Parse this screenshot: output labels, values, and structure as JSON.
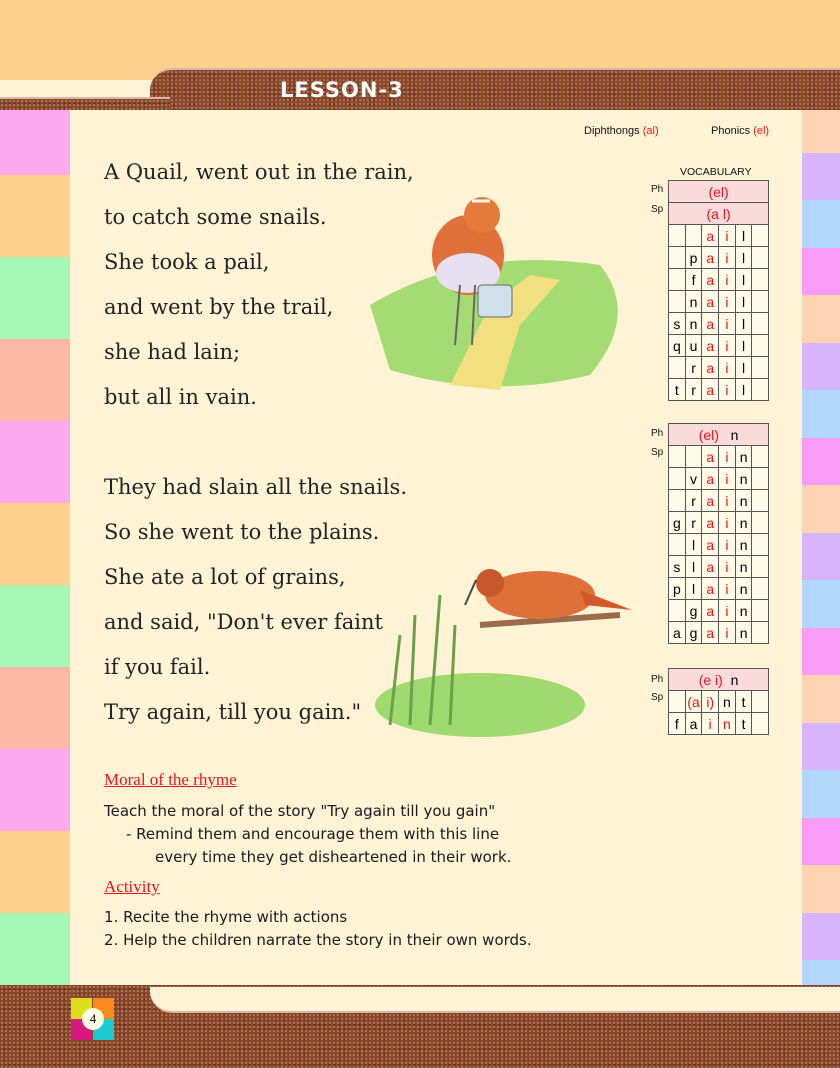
{
  "header": {
    "lesson": "LESSON-3"
  },
  "top_labels": {
    "diphthongs": "Diphthongs",
    "diphthongs_sound": "(al)",
    "phonics": "Phonics",
    "phonics_sound": "(el)"
  },
  "poem": {
    "stanza1": [
      "A Quail, went out in the rain,",
      "to catch some snails.",
      "She took a pail,",
      "and went by the trail,",
      "she had lain;",
      "but all in vain."
    ],
    "stanza2": [
      "They had slain all the snails.",
      "So she went to the plains.",
      "She ate a lot of grains,",
      "and said, \"Don't ever faint",
      "if you fail.",
      "Try again, till you gain.\""
    ]
  },
  "vocabulary": {
    "title": "VOCABULARY",
    "ph_label": "Ph",
    "sp_label": "Sp",
    "table1": {
      "ph": "(el)",
      "sp": "(a  l)",
      "words": [
        [
          "",
          "",
          "a",
          "i",
          "l",
          ""
        ],
        [
          "",
          "p",
          "a",
          "i",
          "l",
          ""
        ],
        [
          "",
          "f",
          "a",
          "i",
          "l",
          ""
        ],
        [
          "",
          "n",
          "a",
          "i",
          "l",
          ""
        ],
        [
          "s",
          "n",
          "a",
          "i",
          "l",
          ""
        ],
        [
          "q",
          "u",
          "a",
          "i",
          "l",
          ""
        ],
        [
          "",
          "r",
          "a",
          "i",
          "l",
          ""
        ],
        [
          "t",
          "r",
          "a",
          "i",
          "l",
          ""
        ]
      ]
    },
    "table2": {
      "ph": "(el)",
      "ph_end": "n",
      "words": [
        [
          "",
          "",
          "a",
          "i",
          "n",
          ""
        ],
        [
          "",
          "v",
          "a",
          "i",
          "n",
          ""
        ],
        [
          "",
          "r",
          "a",
          "i",
          "n",
          ""
        ],
        [
          "g",
          "r",
          "a",
          "i",
          "n",
          ""
        ],
        [
          "",
          "l",
          "a",
          "i",
          "n",
          ""
        ],
        [
          "s",
          "l",
          "a",
          "i",
          "n",
          ""
        ],
        [
          "p",
          "l",
          "a",
          "i",
          "n",
          ""
        ],
        [
          "",
          "g",
          "a",
          "i",
          "n",
          ""
        ],
        [
          "a",
          "g",
          "a",
          "i",
          "n",
          ""
        ]
      ]
    },
    "table3": {
      "ph": "(e  i)",
      "ph_end": "n",
      "sp": [
        "",
        "(a",
        "i)",
        "n",
        "t",
        ""
      ],
      "words": [
        [
          "f",
          "a",
          "i",
          "n",
          "t",
          ""
        ]
      ]
    }
  },
  "moral": {
    "heading": "Moral of the rhyme",
    "lines": [
      "Teach the moral of the story \"Try again till you gain\"",
      "- Remind them and encourage them with this line",
      "every time they get disheartened in their work."
    ]
  },
  "activity": {
    "heading": "Activity",
    "items": [
      "1. Recite the rhyme with actions",
      "2. Help the children narrate the story in their own words."
    ]
  },
  "footer": {
    "page_number": "4"
  },
  "colors": {
    "accent_red": "#e8141c",
    "left_strip": [
      "#fda9f0",
      "#fdd08e",
      "#a7f7b6",
      "#fdb9a8"
    ],
    "right_strip": [
      "#fdd3b4",
      "#d6b5fc",
      "#b3d6fd",
      "#f99cf8"
    ]
  }
}
